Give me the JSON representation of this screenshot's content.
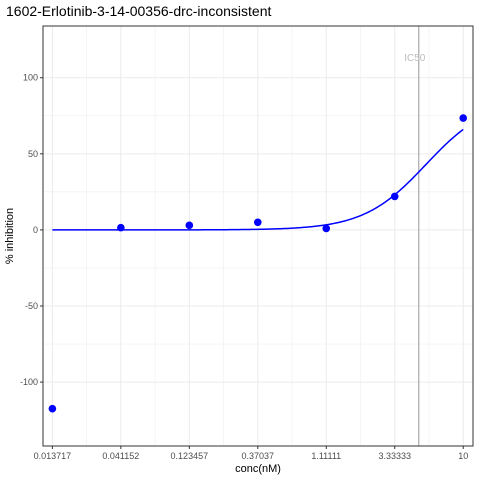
{
  "chart_data": {
    "type": "scatter",
    "title": "1602-Erlotinib-3-14-00356-drc-inconsistent",
    "xlabel": "conc(nM)",
    "ylabel": "% inhibition",
    "x_scale": "log",
    "x_ticks": [
      {
        "value": 0.013717,
        "label": "0.013717"
      },
      {
        "value": 0.041152,
        "label": "0.041152"
      },
      {
        "value": 0.123457,
        "label": "0.123457"
      },
      {
        "value": 0.37037,
        "label": "0.37037"
      },
      {
        "value": 1.11111,
        "label": "1.11111"
      },
      {
        "value": 3.33333,
        "label": "3.33333"
      },
      {
        "value": 10,
        "label": "10"
      }
    ],
    "y_ticks": [
      {
        "value": 100,
        "label": "100"
      },
      {
        "value": 50,
        "label": "50"
      },
      {
        "value": 0,
        "label": "0"
      },
      {
        "value": -50,
        "label": "-50"
      },
      {
        "value": -100,
        "label": "-100"
      }
    ],
    "xlim": [
      0.0118,
      11.7
    ],
    "ylim": [
      -142,
      134
    ],
    "grid": true,
    "points": [
      {
        "x": 0.013717,
        "y": -117.5
      },
      {
        "x": 0.041152,
        "y": 1.5
      },
      {
        "x": 0.123457,
        "y": 3.0
      },
      {
        "x": 0.37037,
        "y": 5.0
      },
      {
        "x": 1.11111,
        "y": 1.0
      },
      {
        "x": 3.33333,
        "y": 22.0
      },
      {
        "x": 10,
        "y": 73.5
      }
    ],
    "fit_curve": {
      "model": "4PL",
      "bottom": 0,
      "top": 86,
      "ec50": 5.5,
      "hill": 2.0,
      "x_range": [
        0.013717,
        10
      ]
    },
    "reference_line": {
      "x": 4.9,
      "label": "IC50"
    },
    "colors": {
      "points": "#0000ff",
      "curve": "#0000ff",
      "reference_line": "#a9a9a9",
      "grid": "#ebebeb",
      "panel_border": "#333333"
    }
  }
}
